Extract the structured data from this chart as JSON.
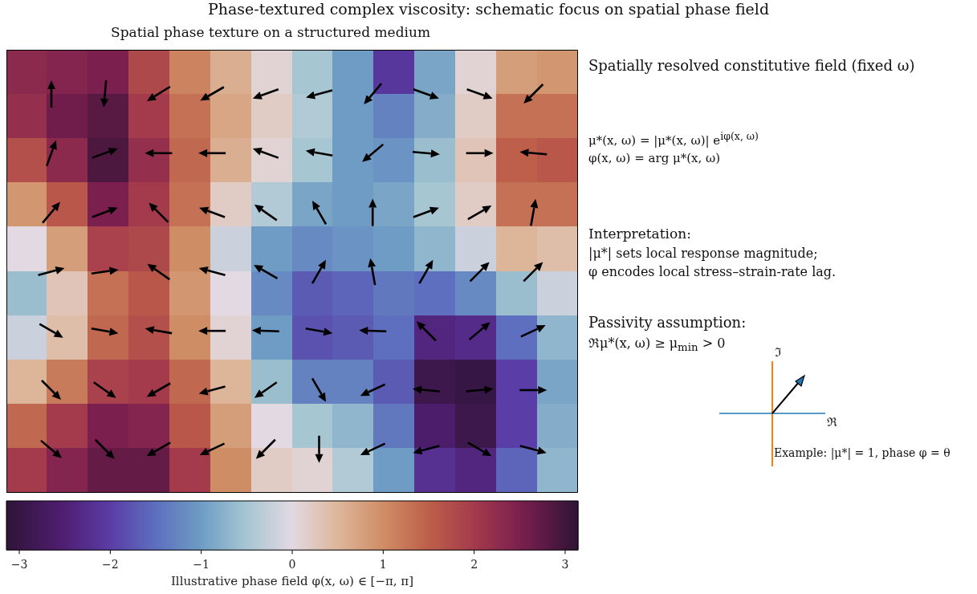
{
  "chart_data": {
    "type": "heatmap",
    "title": "Phase-textured complex viscosity: schematic focus on spatial phase field",
    "subtitle": "Spatial phase texture on a structured medium",
    "clabel": "Illustrative phase field φ(x, ω) ∈ [−π, π]",
    "categories": [
      null,
      null,
      null,
      null,
      null,
      null,
      null,
      null,
      null,
      null,
      null,
      null,
      null,
      null
    ],
    "y_categories": [
      null,
      null,
      null,
      null,
      null,
      null,
      null,
      null,
      null,
      null
    ],
    "cells": [
      [
        2.3,
        2.4,
        2.5,
        1.8,
        1.1,
        0.6,
        0.1,
        -0.5,
        -1.0,
        -2.1,
        -0.9,
        0.1,
        0.8,
        0.9
      ],
      [
        2.2,
        2.6,
        2.8,
        2.0,
        1.3,
        0.7,
        0.2,
        -0.4,
        -1.0,
        -1.3,
        -0.8,
        0.2,
        1.3,
        1.3
      ],
      [
        1.7,
        2.3,
        2.9,
        2.2,
        1.4,
        0.6,
        0.1,
        -0.5,
        -1.0,
        -1.1,
        -0.6,
        0.3,
        1.5,
        1.6
      ],
      [
        0.9,
        1.6,
        2.5,
        2.0,
        1.3,
        0.2,
        -0.4,
        -0.9,
        -1.0,
        -0.9,
        -0.5,
        0.2,
        1.3,
        1.3
      ],
      [
        0.0,
        0.8,
        1.9,
        1.8,
        1.0,
        -0.2,
        -1.0,
        -1.2,
        -1.1,
        -1.0,
        -0.7,
        -0.2,
        0.5,
        0.4
      ],
      [
        -0.6,
        0.3,
        1.3,
        1.6,
        0.9,
        0.0,
        -1.2,
        -1.7,
        -1.6,
        -1.4,
        -1.5,
        -1.2,
        -0.6,
        -0.2
      ],
      [
        -0.2,
        0.4,
        1.4,
        1.7,
        1.0,
        0.1,
        -1.0,
        -1.8,
        -1.7,
        -1.5,
        -2.4,
        -2.3,
        -1.5,
        -0.7
      ],
      [
        0.5,
        1.2,
        1.9,
        2.0,
        1.4,
        0.5,
        -0.6,
        -1.3,
        -1.3,
        -1.7,
        -2.9,
        -3.0,
        -2.0,
        -0.9
      ],
      [
        1.4,
        2.0,
        2.5,
        2.4,
        1.6,
        0.8,
        0.0,
        -0.5,
        -0.7,
        -1.4,
        -2.6,
        -2.9,
        -2.0,
        -0.8
      ],
      [
        2.0,
        2.4,
        2.7,
        2.7,
        2.0,
        1.0,
        0.2,
        0.1,
        -0.4,
        -1.0,
        -2.2,
        -2.4,
        -1.6,
        -0.7
      ]
    ],
    "clim": [
      -3.1416,
      3.1416
    ],
    "cticks": [
      -3,
      -2,
      -1,
      0,
      1,
      2,
      3
    ],
    "annotations": [
      "Spatially resolved constitutive field (fixed ω)",
      "μ*(x, ω) = |μ*(x, ω)| e$^{iφ(x, ω)}$",
      "φ(x, ω) = arg μ*(x, ω)",
      "Interpretation:",
      "|μ*| sets local response magnitude;",
      "φ encodes local stress–strain-rate lag.",
      "Passivity assumption:",
      "ℜμ*(x, ω) ≥ μ$_{min}$ > 0",
      "ℑ",
      "ℜ",
      "Example: |μ*| = 1, phase φ = θ"
    ]
  }
}
